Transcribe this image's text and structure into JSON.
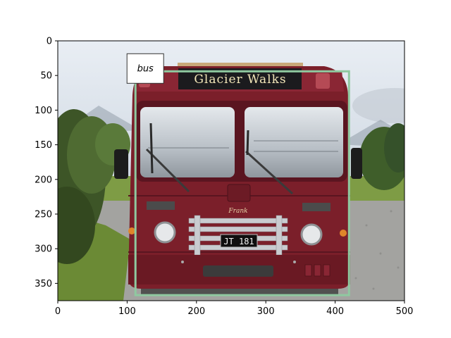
{
  "figure": {
    "x_axis": {
      "range": [
        0,
        500
      ],
      "ticks": [
        0,
        100,
        200,
        300,
        400,
        500
      ]
    },
    "y_axis": {
      "range": [
        375,
        0
      ],
      "ticks": [
        0,
        50,
        100,
        150,
        200,
        250,
        300,
        350
      ],
      "inverted": true
    }
  },
  "photo": {
    "subject": "vintage maroon bus front view on gravel lot",
    "destination_sign": "Glacier Walks",
    "plate": "JT 181",
    "script_badge": "Frank",
    "colors": {
      "body": "#7b1f2a",
      "body_dark": "#5a1520",
      "sky": "#dfe6ee",
      "grass": "#6d8f3a",
      "gravel": "#9a9a9a",
      "trees": "#3c5a2a"
    }
  },
  "detections": [
    {
      "label": "bus",
      "box_color": "#8fc9a0",
      "x0": 112,
      "y0": 44,
      "x1": 420,
      "y1": 367
    }
  ]
}
